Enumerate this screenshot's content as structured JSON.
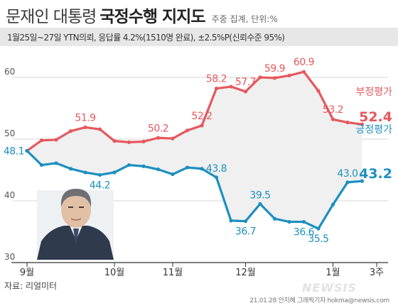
{
  "header": {
    "title_light": "문재인 대통령",
    "title_bold": "국정수행 지지도",
    "subtitle": "주중 집계, 단위:%"
  },
  "info": {
    "text": "1월25일~27일 YTN의뢰, 응답률 4.2%(1510명 완료), ±2.5%P(신뢰수준 95%)"
  },
  "footer": {
    "source": "자료: 리얼미터",
    "credit": "21.01.28 안지혜 그래픽기자 hokma@newsis.com",
    "watermark": "NEWSIS"
  },
  "chart_data": {
    "type": "line",
    "ylim": [
      30,
      65
    ],
    "yticks": [
      30,
      40,
      50,
      60
    ],
    "xticklabels": [
      "9월",
      "10월",
      "11월",
      "12월",
      "1월",
      "3주"
    ],
    "xtick_index": [
      0,
      6,
      10,
      15,
      21,
      24
    ],
    "series": [
      {
        "name": "부정평가",
        "color": "#e5585e",
        "values": [
          48.1,
          49.8,
          49.9,
          51.3,
          51.9,
          51.6,
          49.7,
          49.5,
          49.6,
          50.2,
          50.1,
          51.4,
          52.2,
          58.2,
          58.5,
          57.7,
          60.0,
          59.9,
          60.3,
          60.9,
          57.8,
          53.2,
          52.7,
          52.4
        ],
        "final_label": "52.4"
      },
      {
        "name": "긍정평가",
        "color": "#1d8fbf",
        "values": [
          48.1,
          45.8,
          46.1,
          45.2,
          44.6,
          44.2,
          44.6,
          45.8,
          45.6,
          45.1,
          44.3,
          45.4,
          45.2,
          43.8,
          36.8,
          36.7,
          39.5,
          37.1,
          36.6,
          36.6,
          35.5,
          39.4,
          43.0,
          43.2
        ],
        "final_label": "43.2"
      }
    ],
    "annotations": [
      {
        "series": 0,
        "index": 4,
        "label": "51.9"
      },
      {
        "series": 0,
        "index": 9,
        "label": "50.2"
      },
      {
        "series": 0,
        "index": 12,
        "label": "52.2"
      },
      {
        "series": 0,
        "index": 13,
        "label": "58.2"
      },
      {
        "series": 0,
        "index": 15,
        "label": "57.7"
      },
      {
        "series": 0,
        "index": 17,
        "label": "59.9"
      },
      {
        "series": 0,
        "index": 19,
        "label": "60.9"
      },
      {
        "series": 0,
        "index": 21,
        "label": "53.2"
      },
      {
        "series": 1,
        "index": 0,
        "label": "48.1"
      },
      {
        "series": 1,
        "index": 5,
        "label": "44.2"
      },
      {
        "series": 1,
        "index": 13,
        "label": "43.8"
      },
      {
        "series": 1,
        "index": 15,
        "label": "36.7"
      },
      {
        "series": 1,
        "index": 16,
        "label": "39.5"
      },
      {
        "series": 1,
        "index": 19,
        "label": "36.6"
      },
      {
        "series": 1,
        "index": 20,
        "label": "35.5"
      },
      {
        "series": 1,
        "index": 22,
        "label": "43.0"
      }
    ]
  }
}
